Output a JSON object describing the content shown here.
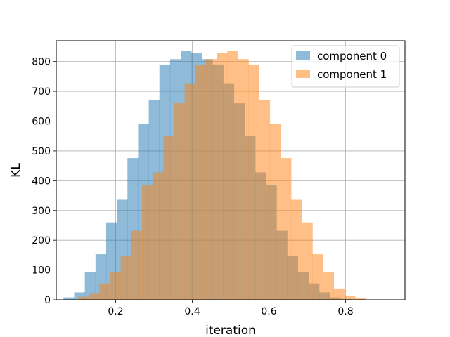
{
  "chart_data": {
    "type": "bar",
    "subtype": "overlapping-histogram",
    "xlabel": "iteration",
    "ylabel": "KL",
    "xlim": [
      0.045,
      0.955
    ],
    "ylim": [
      0,
      870
    ],
    "xticks": [
      0.2,
      0.4,
      0.6,
      0.8
    ],
    "xtick_labels": [
      "0.2",
      "0.4",
      "0.6",
      "0.8"
    ],
    "yticks": [
      0,
      100,
      200,
      300,
      400,
      500,
      600,
      700,
      800
    ],
    "ytick_labels": [
      "0",
      "100",
      "200",
      "300",
      "400",
      "500",
      "600",
      "700",
      "800"
    ],
    "grid": true,
    "legend_position": "top-right",
    "series": [
      {
        "name": "component 0",
        "color": "#1f77b4",
        "alpha": 0.5,
        "bin_edges": [
          0.064,
          0.0918,
          0.1196,
          0.1474,
          0.1752,
          0.203,
          0.2308,
          0.2586,
          0.2864,
          0.3142,
          0.342,
          0.3698,
          0.3976,
          0.4254,
          0.4532,
          0.481,
          0.5088,
          0.5366,
          0.5644,
          0.5922,
          0.62,
          0.6478,
          0.6756,
          0.7034,
          0.7312,
          0.759,
          0.7868,
          0.8146,
          0.8424,
          0.8702,
          0.898,
          0.9258
        ],
        "counts": [
          8,
          25,
          92,
          153,
          260,
          336,
          476,
          590,
          670,
          790,
          808,
          835,
          828,
          808,
          790,
          727,
          660,
          551,
          428,
          385,
          232,
          147,
          92,
          55,
          25,
          8,
          3,
          0,
          0,
          0,
          0
        ]
      },
      {
        "name": "component 1",
        "color": "#ff7f0e",
        "alpha": 0.5,
        "bin_edges": [
          0.0742,
          0.102,
          0.1298,
          0.1576,
          0.1854,
          0.2132,
          0.241,
          0.2688,
          0.2966,
          0.3244,
          0.3522,
          0.38,
          0.4078,
          0.4356,
          0.4634,
          0.4912,
          0.519,
          0.5468,
          0.5746,
          0.6024,
          0.6302,
          0.658,
          0.6858,
          0.7136,
          0.7414,
          0.7692,
          0.797,
          0.8248,
          0.8526,
          0.8804,
          0.9082,
          0.936
        ],
        "counts": [
          0,
          10,
          20,
          55,
          92,
          148,
          232,
          385,
          428,
          551,
          660,
          727,
          790,
          808,
          828,
          835,
          808,
          790,
          670,
          590,
          476,
          336,
          260,
          153,
          92,
          38,
          12,
          5,
          0,
          0,
          0
        ]
      }
    ]
  }
}
